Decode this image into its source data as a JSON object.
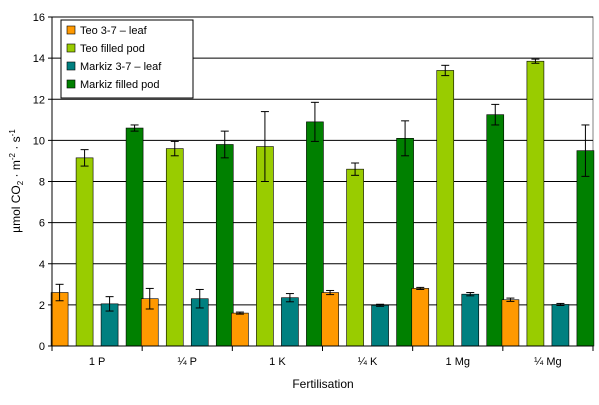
{
  "chart_data": {
    "type": "bar",
    "xlabel": "Fertilisation",
    "ylabel": {
      "prefix": "µmol CO",
      "sub": "2",
      "mid": " · m",
      "sup1": "-2",
      "mid2": " · s",
      "sup2": "-1"
    },
    "ylim": [
      0,
      16
    ],
    "yticks": [
      0,
      2,
      4,
      6,
      8,
      10,
      12,
      14,
      16
    ],
    "grid": true,
    "legend_position": "top-left",
    "categories": [
      "1 P",
      "¼ P",
      "1 K",
      "¼ K",
      "1 Mg",
      "¼ Mg"
    ],
    "series": [
      {
        "name": "Teo 3-7 – leaf",
        "color": "#FF9900",
        "values": [
          2.6,
          2.3,
          1.6,
          2.6,
          2.8,
          2.25
        ],
        "errors": [
          0.4,
          0.5,
          0.05,
          0.1,
          0.05,
          0.08
        ]
      },
      {
        "name": "Teo filled pod",
        "color": "#99CC00",
        "values": [
          9.15,
          9.6,
          9.7,
          8.6,
          13.4,
          13.85
        ],
        "errors": [
          0.4,
          0.35,
          1.7,
          0.3,
          0.25,
          0.1
        ]
      },
      {
        "name": "Markiz 3-7 – leaf",
        "color": "#008080",
        "values": [
          2.05,
          2.3,
          2.35,
          1.98,
          2.52,
          2.02
        ],
        "errors": [
          0.35,
          0.45,
          0.2,
          0.05,
          0.08,
          0.05
        ]
      },
      {
        "name": "Markiz filled pod",
        "color": "#008000",
        "values": [
          10.6,
          9.8,
          10.9,
          10.1,
          11.25,
          9.5
        ],
        "errors": [
          0.15,
          0.65,
          0.95,
          0.85,
          0.5,
          1.25
        ]
      }
    ]
  }
}
